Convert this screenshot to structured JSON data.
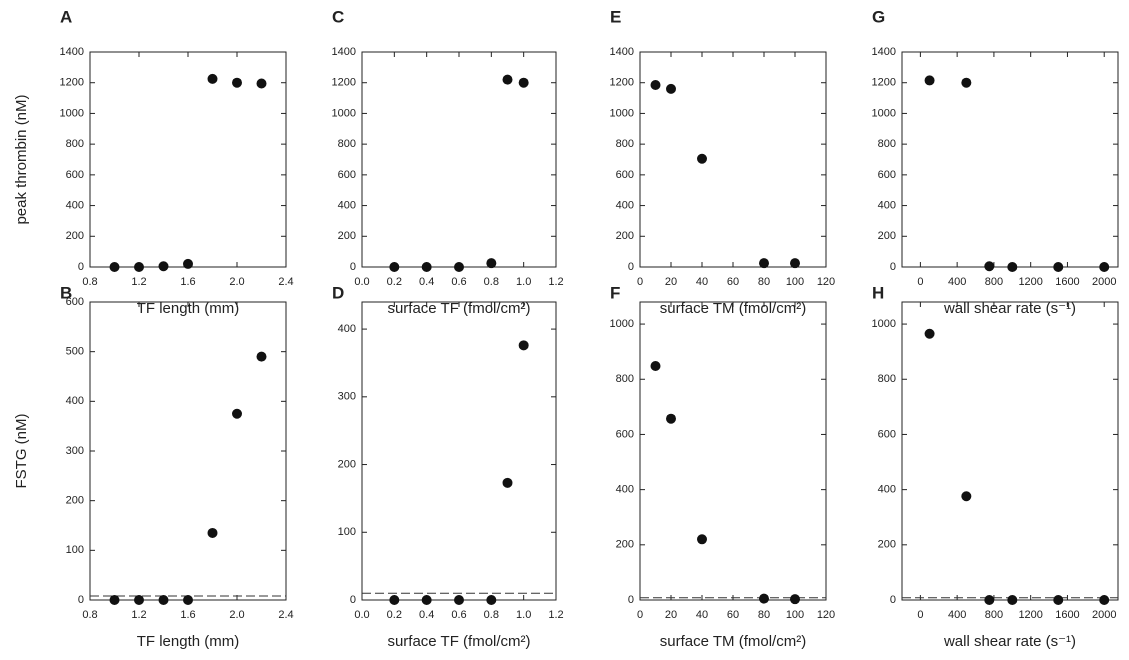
{
  "chart_data": [
    {
      "type": "scatter",
      "label": "A",
      "ylabel": "peak thrombin (nM)",
      "xlabel": "TF length (mm)",
      "color": "#111111",
      "x": [
        1.0,
        1.2,
        1.4,
        1.6,
        1.8,
        2.0,
        2.2
      ],
      "values": [
        0,
        0,
        5,
        20,
        1225,
        1200,
        1195
      ],
      "xlim": [
        0.8,
        2.4
      ],
      "xticks": [
        0.8,
        1.2,
        1.6,
        {
          "value": 2,
          "label": "2.0"
        },
        2.4
      ],
      "ylim": [
        0,
        1400
      ],
      "yticks": [
        0,
        200,
        400,
        600,
        800,
        1000,
        1200,
        1400
      ]
    },
    {
      "type": "scatter",
      "label": "B",
      "ylabel": "FSTG (nM)",
      "xlabel": "TF length (mm)",
      "color": "#111111",
      "x": [
        1.0,
        1.2,
        1.4,
        1.6,
        1.8,
        2.0,
        2.2
      ],
      "values": [
        0,
        0,
        0,
        0,
        135,
        375,
        490
      ],
      "xlim": [
        0.8,
        2.4
      ],
      "xticks": [
        0.8,
        1.2,
        1.6,
        {
          "value": 2,
          "label": "2.0"
        },
        2.4
      ],
      "ylim": [
        0,
        600
      ],
      "yticks": [
        0,
        100,
        200,
        300,
        400,
        500,
        600
      ],
      "reference_line": {
        "value": 8,
        "style": "dashed"
      }
    },
    {
      "type": "scatter",
      "label": "C",
      "xlabel": "surface TF (fmol/cm²)",
      "color": "#111111",
      "x": [
        0.2,
        0.4,
        0.6,
        0.8,
        0.9,
        1.0
      ],
      "values": [
        0,
        0,
        0,
        25,
        1220,
        1200
      ],
      "xlim": [
        0,
        1.2
      ],
      "xticks": [
        {
          "value": 0,
          "label": "0.0"
        },
        0.2,
        0.4,
        0.6,
        0.8,
        {
          "value": 1,
          "label": "1.0"
        },
        1.2
      ],
      "ylim": [
        0,
        1400
      ],
      "yticks": [
        0,
        200,
        400,
        600,
        800,
        1000,
        1200,
        1400
      ]
    },
    {
      "type": "scatter",
      "label": "D",
      "xlabel": "surface TF (fmol/cm²)",
      "color": "#111111",
      "x": [
        0.2,
        0.4,
        0.6,
        0.8,
        0.9,
        1.0
      ],
      "values": [
        0,
        0,
        0,
        0,
        173,
        376
      ],
      "xlim": [
        0,
        1.2
      ],
      "xticks": [
        {
          "value": 0,
          "label": "0.0"
        },
        0.2,
        0.4,
        0.6,
        0.8,
        {
          "value": 1,
          "label": "1.0"
        },
        1.2
      ],
      "ylim": [
        0,
        440
      ],
      "yticks": [
        0,
        100,
        200,
        300,
        400
      ],
      "reference_line": {
        "value": 10,
        "style": "dashed"
      }
    },
    {
      "type": "scatter",
      "label": "E",
      "xlabel": "surface TM (fmol/cm²)",
      "color": "#111111",
      "x": [
        10,
        20,
        40,
        80,
        100
      ],
      "values": [
        1185,
        1160,
        705,
        25,
        25
      ],
      "xlim": [
        0,
        120
      ],
      "xticks": [
        0,
        20,
        40,
        60,
        80,
        100,
        120
      ],
      "ylim": [
        0,
        1400
      ],
      "yticks": [
        0,
        200,
        400,
        600,
        800,
        1000,
        1200,
        1400
      ]
    },
    {
      "type": "scatter",
      "label": "F",
      "xlabel": "surface TM (fmol/cm²)",
      "color": "#111111",
      "x": [
        10,
        20,
        40,
        80,
        100
      ],
      "values": [
        848,
        657,
        220,
        5,
        3
      ],
      "xlim": [
        0,
        120
      ],
      "xticks": [
        0,
        20,
        40,
        60,
        80,
        100,
        120
      ],
      "ylim": [
        0,
        1080
      ],
      "yticks": [
        0,
        200,
        400,
        600,
        800,
        1000
      ],
      "reference_line": {
        "value": 8,
        "style": "dashed"
      }
    },
    {
      "type": "scatter",
      "label": "G",
      "xlabel": "wall shear rate (s⁻¹)",
      "color": "#111111",
      "x": [
        100,
        500,
        750,
        1000,
        1500,
        2000
      ],
      "values": [
        1215,
        1200,
        5,
        0,
        0,
        0
      ],
      "xlim": [
        -200,
        2150
      ],
      "xticks": [
        0,
        400,
        800,
        1200,
        1600,
        2000
      ],
      "ylim": [
        0,
        1400
      ],
      "yticks": [
        0,
        200,
        400,
        600,
        800,
        1000,
        1200,
        1400
      ]
    },
    {
      "type": "scatter",
      "label": "H",
      "xlabel": "wall shear rate (s⁻¹)",
      "color": "#111111",
      "x": [
        100,
        500,
        750,
        1000,
        1500,
        2000
      ],
      "values": [
        965,
        376,
        0,
        0,
        0,
        0
      ],
      "xlim": [
        -200,
        2150
      ],
      "xticks": [
        0,
        400,
        800,
        1200,
        1600,
        2000
      ],
      "ylim": [
        0,
        1080
      ],
      "yticks": [
        0,
        200,
        400,
        600,
        800,
        1000
      ],
      "reference_line": {
        "value": 8,
        "style": "dashed"
      }
    }
  ]
}
